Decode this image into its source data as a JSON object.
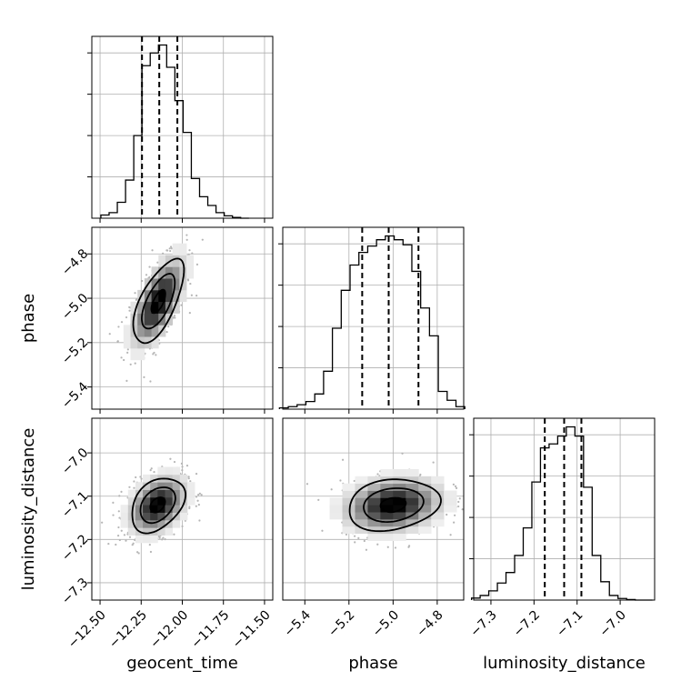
{
  "chart_data": {
    "type": "corner",
    "parameters": [
      "geocent_time",
      "phase",
      "luminosity_distance"
    ],
    "axes": {
      "geocent_time": {
        "range": [
          -12.55,
          -11.45
        ],
        "ticks": [
          -12.5,
          -12.25,
          -12.0,
          -11.75,
          -11.5
        ],
        "tick_labels": [
          "−12.50",
          "−12.25",
          "−12.00",
          "−11.75",
          "−11.50"
        ]
      },
      "phase": {
        "range": [
          -5.5,
          -4.68
        ],
        "ticks": [
          -5.4,
          -5.2,
          -5.0,
          -4.8
        ],
        "tick_labels": [
          "−5.4",
          "−5.2",
          "−5.0",
          "−4.8"
        ]
      },
      "luminosity_distance": {
        "range": [
          -7.34,
          -6.92
        ],
        "ticks": [
          -7.3,
          -7.2,
          -7.1,
          -7.0
        ],
        "tick_labels": [
          "−7.3",
          "−7.2",
          "−7.1",
          "−7.0"
        ]
      }
    },
    "histograms": {
      "geocent_time": {
        "bins": [
          -12.47,
          -12.42,
          -12.37,
          -12.32,
          -12.27,
          -12.22,
          -12.17,
          -12.12,
          -12.07,
          -12.02,
          -11.97,
          -11.92,
          -11.87,
          -11.82,
          -11.77,
          -11.72,
          -11.67,
          -11.62
        ],
        "counts": [
          0.2,
          0.35,
          1.0,
          2.4,
          5.2,
          9.6,
          10.4,
          10.9,
          9.5,
          7.4,
          5.4,
          2.5,
          1.35,
          0.8,
          0.35,
          0.15,
          0.05,
          0.0
        ],
        "quantiles": [
          -12.245,
          -12.14,
          -12.03
        ]
      },
      "phase": {
        "bins": [
          -5.495,
          -5.455,
          -5.415,
          -5.375,
          -5.335,
          -5.295,
          -5.255,
          -5.215,
          -5.175,
          -5.135,
          -5.095,
          -5.055,
          -5.015,
          -4.975,
          -4.935,
          -4.895,
          -4.855,
          -4.815,
          -4.775,
          -4.735,
          -4.695
        ],
        "counts": [
          0.1,
          0.2,
          0.35,
          0.6,
          1.2,
          3.0,
          6.4,
          9.4,
          11.4,
          12.4,
          12.9,
          13.4,
          13.7,
          13.4,
          13.0,
          10.9,
          8.0,
          5.8,
          1.4,
          0.7,
          0.2
        ],
        "quantiles": [
          -5.14,
          -5.02,
          -4.885
        ]
      },
      "luminosity_distance": {
        "bins": [
          -7.335,
          -7.315,
          -7.295,
          -7.275,
          -7.255,
          -7.235,
          -7.215,
          -7.195,
          -7.175,
          -7.155,
          -7.135,
          -7.115,
          -7.095,
          -7.075,
          -7.055,
          -7.035,
          -7.015,
          -6.995,
          -6.975,
          -6.955,
          -6.935
        ],
        "counts": [
          0.15,
          0.35,
          0.7,
          1.3,
          2.1,
          3.4,
          5.5,
          9.0,
          11.6,
          11.9,
          12.5,
          13.2,
          12.5,
          8.6,
          3.4,
          1.4,
          0.35,
          0.12,
          0.04,
          0.0,
          0.0
        ],
        "quantiles": [
          -7.175,
          -7.13,
          -7.09
        ]
      }
    },
    "joint": {
      "phase_vs_geocent_time": {
        "mean": [
          -12.145,
          -5.015
        ],
        "sd": [
          0.085,
          0.105
        ],
        "corr": 0.65,
        "levels": [
          0.5,
          1.18,
          1.8
        ]
      },
      "luminosity_distance_vs_geocent_time": {
        "mean": [
          -12.15,
          -7.12
        ],
        "sd": [
          0.09,
          0.035
        ],
        "corr": 0.35,
        "levels": [
          0.5,
          1.18,
          1.8
        ]
      },
      "luminosity_distance_vs_phase": {
        "mean": [
          -5.0,
          -7.12
        ],
        "sd": [
          0.115,
          0.033
        ],
        "corr": 0.18,
        "levels": [
          0.5,
          1.18,
          1.8
        ]
      }
    },
    "grid": true
  }
}
